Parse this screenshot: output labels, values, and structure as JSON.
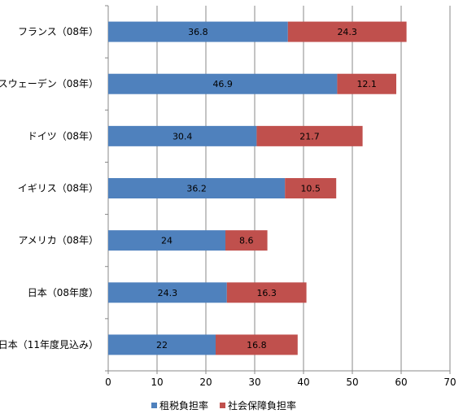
{
  "chart_data": {
    "type": "bar",
    "orientation": "horizontal",
    "stacked": true,
    "title": "",
    "xlabel": "",
    "ylabel": "",
    "xlim": [
      0,
      70
    ],
    "x_ticks": [
      0,
      10,
      20,
      30,
      40,
      50,
      60,
      70
    ],
    "grid": "vertical",
    "legend_position": "bottom",
    "categories": [
      "フランス（08年）",
      "スウェーデン（08年）",
      "ドイツ（08年）",
      "イギリス（08年）",
      "アメリカ（08年）",
      "日本（08年度）",
      "日本（11年度見込み）"
    ],
    "series": [
      {
        "name": "租税負担率",
        "color": "#4F81BD",
        "values": [
          36.8,
          46.9,
          30.4,
          36.2,
          24,
          24.3,
          22
        ]
      },
      {
        "name": "社会保障負担率",
        "color": "#C0504D",
        "values": [
          24.3,
          12.1,
          21.7,
          10.5,
          8.6,
          16.3,
          16.8
        ]
      }
    ]
  }
}
